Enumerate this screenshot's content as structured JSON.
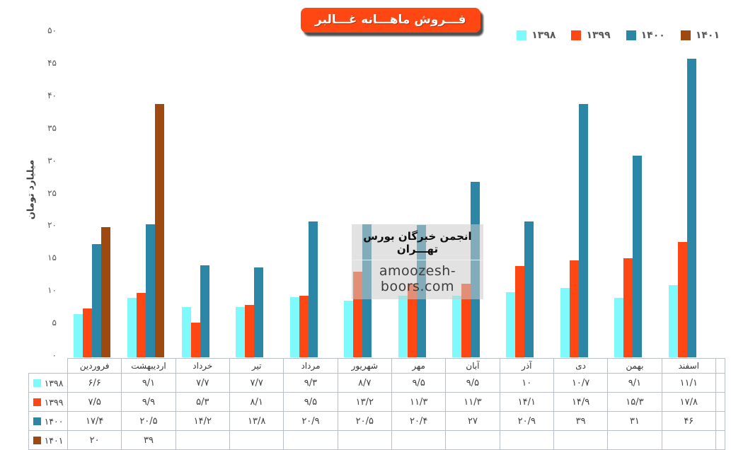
{
  "header": {
    "title": "فـــروش ماهـــانه غـــالبر"
  },
  "watermark": {
    "org": "انجمن خبرگان بورس تهـــران",
    "url": "amoozesh-boors.com"
  },
  "y_axis": {
    "title": "میلیارد تومان",
    "tick_labels": [
      "۵۰",
      "۴۵",
      "۴۰",
      "۳۵",
      "۳۰",
      "۲۵",
      "۲۰",
      "۱۵",
      "۱۰",
      "۵",
      "۰"
    ]
  },
  "colors": {
    "title_bg": "#FF4713",
    "series_1398": "#7EF9FC",
    "series_1399": "#FF4713",
    "series_1400": "#2B87A5",
    "series_1401": "#9E490F",
    "table_border": "#b9bfc9",
    "text_gray": "#595959"
  },
  "chart_data": {
    "type": "bar",
    "title": "فـــروش ماهـــانه غـــالبر",
    "xlabel": "",
    "ylabel": "میلیارد تومان",
    "ylim": [
      0,
      50
    ],
    "ytick_step": 5,
    "grid": false,
    "legend_position": "top-right",
    "categories": [
      "فروردین",
      "اردیبهشت",
      "خرداد",
      "تیر",
      "مرداد",
      "شهریور",
      "مهر",
      "آبان",
      "آذر",
      "دی",
      "بهمن",
      "اسفند"
    ],
    "series": [
      {
        "name": "۱۳۹۸",
        "color": "#7EF9FC",
        "values": [
          6.6,
          9.1,
          7.7,
          7.7,
          9.3,
          8.7,
          9.5,
          9.5,
          10,
          10.7,
          9.1,
          11.1
        ],
        "table_values": [
          "۶/۶",
          "۹/۱",
          "۷/۷",
          "۷/۷",
          "۹/۳",
          "۸/۷",
          "۹/۵",
          "۹/۵",
          "۱۰",
          "۱۰/۷",
          "۹/۱",
          "۱۱/۱"
        ]
      },
      {
        "name": "۱۳۹۹",
        "color": "#FF4713",
        "values": [
          7.5,
          9.9,
          5.3,
          8.1,
          9.5,
          13.2,
          11.3,
          11.3,
          14.1,
          14.9,
          15.3,
          17.8
        ],
        "table_values": [
          "۷/۵",
          "۹/۹",
          "۵/۳",
          "۸/۱",
          "۹/۵",
          "۱۳/۲",
          "۱۱/۳",
          "۱۱/۳",
          "۱۴/۱",
          "۱۴/۹",
          "۱۵/۳",
          "۱۷/۸"
        ]
      },
      {
        "name": "۱۴۰۰",
        "color": "#2B87A5",
        "values": [
          17.4,
          20.5,
          14.2,
          13.8,
          20.9,
          20.5,
          20.4,
          27,
          20.9,
          39,
          31,
          46
        ],
        "table_values": [
          "۱۷/۴",
          "۲۰/۵",
          "۱۴/۲",
          "۱۳/۸",
          "۲۰/۹",
          "۲۰/۵",
          "۲۰/۴",
          "۲۷",
          "۲۰/۹",
          "۳۹",
          "۳۱",
          "۴۶"
        ]
      },
      {
        "name": "۱۴۰۱",
        "color": "#9E490F",
        "values": [
          20,
          39,
          null,
          null,
          null,
          null,
          null,
          null,
          null,
          null,
          null,
          null
        ],
        "table_values": [
          "۲۰",
          "۳۹",
          "",
          "",
          "",
          "",
          "",
          "",
          "",
          "",
          "",
          ""
        ]
      }
    ]
  }
}
